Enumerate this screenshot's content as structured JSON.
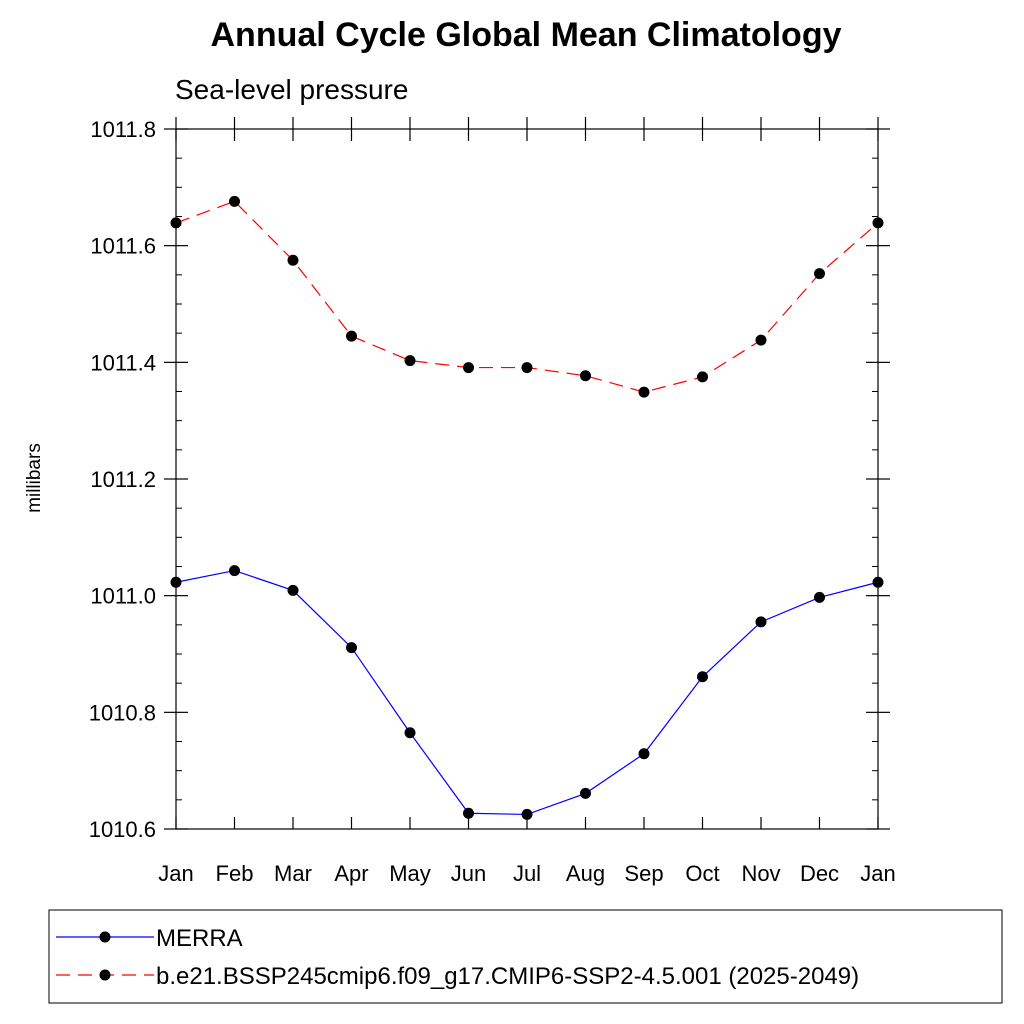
{
  "chart_data": {
    "type": "line",
    "title": "Annual Cycle Global Mean Climatology",
    "subtitle": "Sea-level pressure",
    "xlabel": "",
    "ylabel": "millibars",
    "categories": [
      "Jan",
      "Feb",
      "Mar",
      "Apr",
      "May",
      "Jun",
      "Jul",
      "Aug",
      "Sep",
      "Oct",
      "Nov",
      "Dec",
      "Jan"
    ],
    "ylim": [
      1010.6,
      1011.8
    ],
    "yticks": [
      "1010.6",
      "1010.8",
      "1011.0",
      "1011.2",
      "1011.4",
      "1011.6",
      "1011.8"
    ],
    "ytick_values": [
      1010.6,
      1010.8,
      1011.0,
      1011.2,
      1011.4,
      1011.6,
      1011.8
    ],
    "grid": false,
    "legend_position": "bottom",
    "series": [
      {
        "name": "MERRA",
        "color": "#0000ff",
        "dash": "solid",
        "values": [
          1011.023,
          1011.043,
          1011.009,
          1010.911,
          1010.765,
          1010.627,
          1010.625,
          1010.661,
          1010.729,
          1010.861,
          1010.955,
          1010.997,
          1011.023
        ]
      },
      {
        "name": "b.e21.BSSP245cmip6.f09_g17.CMIP6-SSP2-4.5.001 (2025-2049)",
        "color": "#ff0000",
        "dash": "dashed",
        "values": [
          1011.639,
          1011.676,
          1011.575,
          1011.445,
          1011.403,
          1011.391,
          1011.391,
          1011.377,
          1011.349,
          1011.375,
          1011.438,
          1011.552,
          1011.639
        ]
      }
    ]
  }
}
